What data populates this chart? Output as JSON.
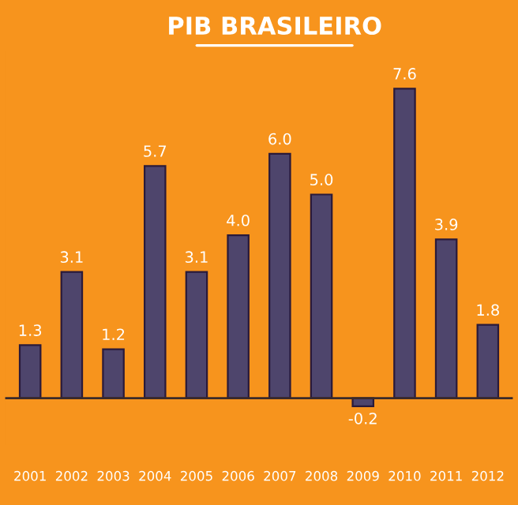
{
  "chart_data": {
    "type": "bar",
    "title": "PIB BRASILEIRO",
    "categories": [
      "2001",
      "2002",
      "2003",
      "2004",
      "2005",
      "2006",
      "2007",
      "2008",
      "2009",
      "2010",
      "2011",
      "2012"
    ],
    "values": [
      1.3,
      3.1,
      1.2,
      5.7,
      3.1,
      4.0,
      6.0,
      5.0,
      -0.2,
      7.6,
      3.9,
      1.8
    ],
    "color": "#4b3f72",
    "tick_labels": "x",
    "value_labels": [
      "1.3",
      "3.1",
      "1.2",
      "5.7",
      "3.1",
      "4.0",
      "6.0",
      "5.0",
      "-0.2",
      "7.6",
      "3.9",
      "1.8"
    ],
    "grid": false,
    "legend": false
  }
}
